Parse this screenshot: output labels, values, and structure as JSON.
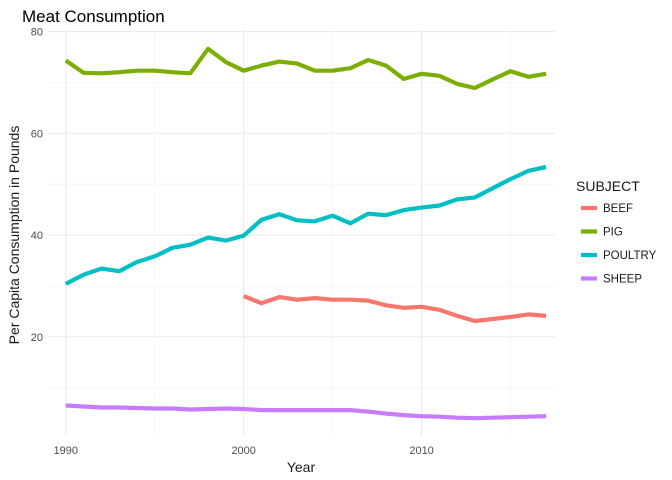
{
  "chart_data": {
    "type": "line",
    "title": "Meat Consumption",
    "xlabel": "Year",
    "ylabel": "Per Capita Consumption in Pounds",
    "xlim": [
      1989,
      2017.5
    ],
    "ylim": [
      0.5,
      80.5
    ],
    "x_ticks": [
      1990,
      2000,
      2010
    ],
    "y_ticks": [
      20,
      40,
      60,
      80
    ],
    "grid": true,
    "legend": {
      "title": "SUBJECT",
      "position": "right"
    },
    "series": [
      {
        "name": "BEEF",
        "color": "#F8766D",
        "x": [
          2000,
          2001,
          2002,
          2003,
          2004,
          2005,
          2006,
          2007,
          2008,
          2009,
          2010,
          2011,
          2012,
          2013,
          2014,
          2015,
          2016,
          2017
        ],
        "y": [
          28.0,
          26.6,
          27.8,
          27.3,
          27.6,
          27.3,
          27.3,
          27.1,
          26.2,
          25.7,
          25.9,
          25.3,
          24.1,
          23.1,
          23.5,
          23.9,
          24.4,
          24.1
        ]
      },
      {
        "name": "PIG",
        "color": "#7CAE00",
        "x": [
          1990,
          1991,
          1992,
          1993,
          1994,
          1995,
          1996,
          1997,
          1998,
          1999,
          2000,
          2001,
          2002,
          2003,
          2004,
          2005,
          2006,
          2007,
          2008,
          2009,
          2010,
          2011,
          2012,
          2013,
          2014,
          2015,
          2016,
          2017
        ],
        "y": [
          74.3,
          71.9,
          71.8,
          72.0,
          72.3,
          72.3,
          72.0,
          71.8,
          76.6,
          74.0,
          72.3,
          73.3,
          74.1,
          73.7,
          72.3,
          72.3,
          72.8,
          74.4,
          73.3,
          70.7,
          71.7,
          71.3,
          69.7,
          68.9,
          70.6,
          72.2,
          71.1,
          71.7
        ]
      },
      {
        "name": "POULTRY",
        "color": "#00BFC4",
        "x": [
          1990,
          1991,
          1992,
          1993,
          1994,
          1995,
          1996,
          1997,
          1998,
          1999,
          2000,
          2001,
          2002,
          2003,
          2004,
          2005,
          2006,
          2007,
          2008,
          2009,
          2010,
          2011,
          2012,
          2013,
          2014,
          2015,
          2016,
          2017
        ],
        "y": [
          30.4,
          32.2,
          33.4,
          32.9,
          34.7,
          35.8,
          37.5,
          38.1,
          39.5,
          38.9,
          39.9,
          43.0,
          44.1,
          42.9,
          42.7,
          43.8,
          42.3,
          44.2,
          43.9,
          44.9,
          45.4,
          45.8,
          47.0,
          47.4,
          49.2,
          51.0,
          52.6,
          53.4
        ]
      },
      {
        "name": "SHEEP",
        "color": "#C77CFF",
        "x": [
          1990,
          1991,
          1992,
          1993,
          1994,
          1995,
          1996,
          1997,
          1998,
          1999,
          2000,
          2001,
          2002,
          2003,
          2004,
          2005,
          2006,
          2007,
          2008,
          2009,
          2010,
          2011,
          2012,
          2013,
          2014,
          2015,
          2016,
          2017
        ],
        "y": [
          6.5,
          6.3,
          6.1,
          6.1,
          6.0,
          5.9,
          5.9,
          5.7,
          5.8,
          5.9,
          5.8,
          5.6,
          5.6,
          5.6,
          5.6,
          5.6,
          5.6,
          5.3,
          4.9,
          4.6,
          4.4,
          4.3,
          4.1,
          4.0,
          4.1,
          4.2,
          4.3,
          4.4
        ]
      }
    ]
  }
}
